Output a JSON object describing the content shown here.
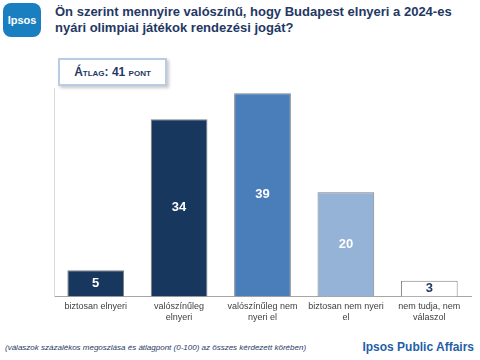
{
  "chart_data": {
    "type": "bar",
    "title": "Ön szerint mennyire valószínű, hogy Budapest elnyeri a 2024-es nyári olimpiai játékok rendezési jogát?",
    "categories": [
      "biztosan elnyeri",
      "valószínűleg elnyeri",
      "valószínűleg nem nyeri el",
      "biztosan nem nyeri el",
      "nem tudja, nem válaszol"
    ],
    "values": [
      5,
      34,
      39,
      20,
      3
    ],
    "colors": [
      "#17375e",
      "#17375e",
      "#4a7ebb",
      "#95b3d7",
      "#ffffff"
    ],
    "ylim": [
      0,
      40
    ],
    "data_labels": true,
    "tick_labels": "x",
    "grid": false
  },
  "average": "Átlag: 41 pont",
  "note": "(válaszok százalékos megoszlása és átlagpont (0-100) az összes kérdezett körében)",
  "brand": "Ipsos Public Affairs",
  "logo": "Ipsos"
}
